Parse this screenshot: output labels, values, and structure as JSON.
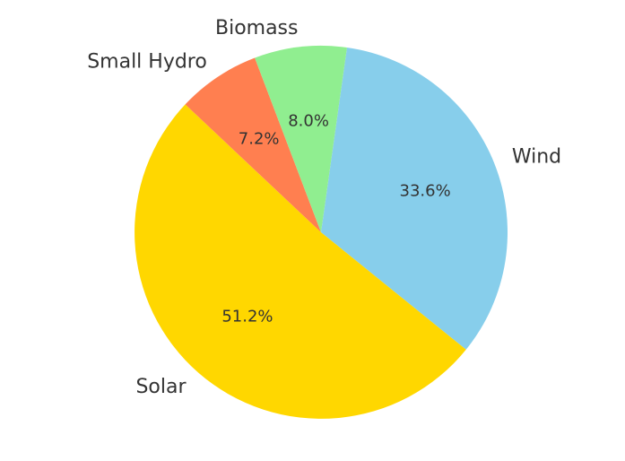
{
  "chart_data": {
    "type": "pie",
    "start_angle_deg": 82,
    "direction": "clockwise",
    "slices": [
      {
        "label": "Wind",
        "value": 33.6,
        "percent_label": "33.6%",
        "color": "#87CEEB"
      },
      {
        "label": "Solar",
        "value": 51.2,
        "percent_label": "51.2%",
        "color": "#FFD700"
      },
      {
        "label": "Small Hydro",
        "value": 7.2,
        "percent_label": "7.2%",
        "color": "#FF7F50"
      },
      {
        "label": "Biomass",
        "value": 8.0,
        "percent_label": "8.0%",
        "color": "#90EE90"
      }
    ]
  }
}
